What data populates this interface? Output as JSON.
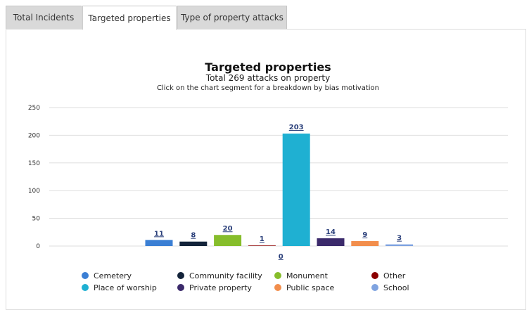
{
  "tabs": [
    {
      "label": "Total Incidents",
      "active": false
    },
    {
      "label": "Targeted properties",
      "active": true
    },
    {
      "label": "Type of property attacks",
      "active": false
    }
  ],
  "chart_data": {
    "type": "bar",
    "title": "Targeted properties",
    "subtitle": "Total 269 attacks on property",
    "hint": "Click on the chart segment for a breakdown by bias motivation",
    "categories": [
      "Cemetery",
      "Community facility",
      "Monument",
      "Other",
      "Place of worship",
      "Private property",
      "Public space",
      "School"
    ],
    "values": [
      11,
      8,
      20,
      1,
      203,
      14,
      9,
      3
    ],
    "extra_label": "0",
    "colors": [
      "#3b7fd4",
      "#13233a",
      "#86bd2b",
      "#8b0000",
      "#1fb0d2",
      "#3b2a6b",
      "#f28e4c",
      "#7fa3e0"
    ],
    "yticks": [
      0,
      50,
      100,
      150,
      200,
      250
    ],
    "ylim": [
      0,
      250
    ],
    "grid": true,
    "legend": {
      "placement": "bottom",
      "columns": 4,
      "items": [
        "Cemetery",
        "Community facility",
        "Monument",
        "Other",
        "Place of worship",
        "Private property",
        "Public space",
        "School"
      ]
    }
  }
}
